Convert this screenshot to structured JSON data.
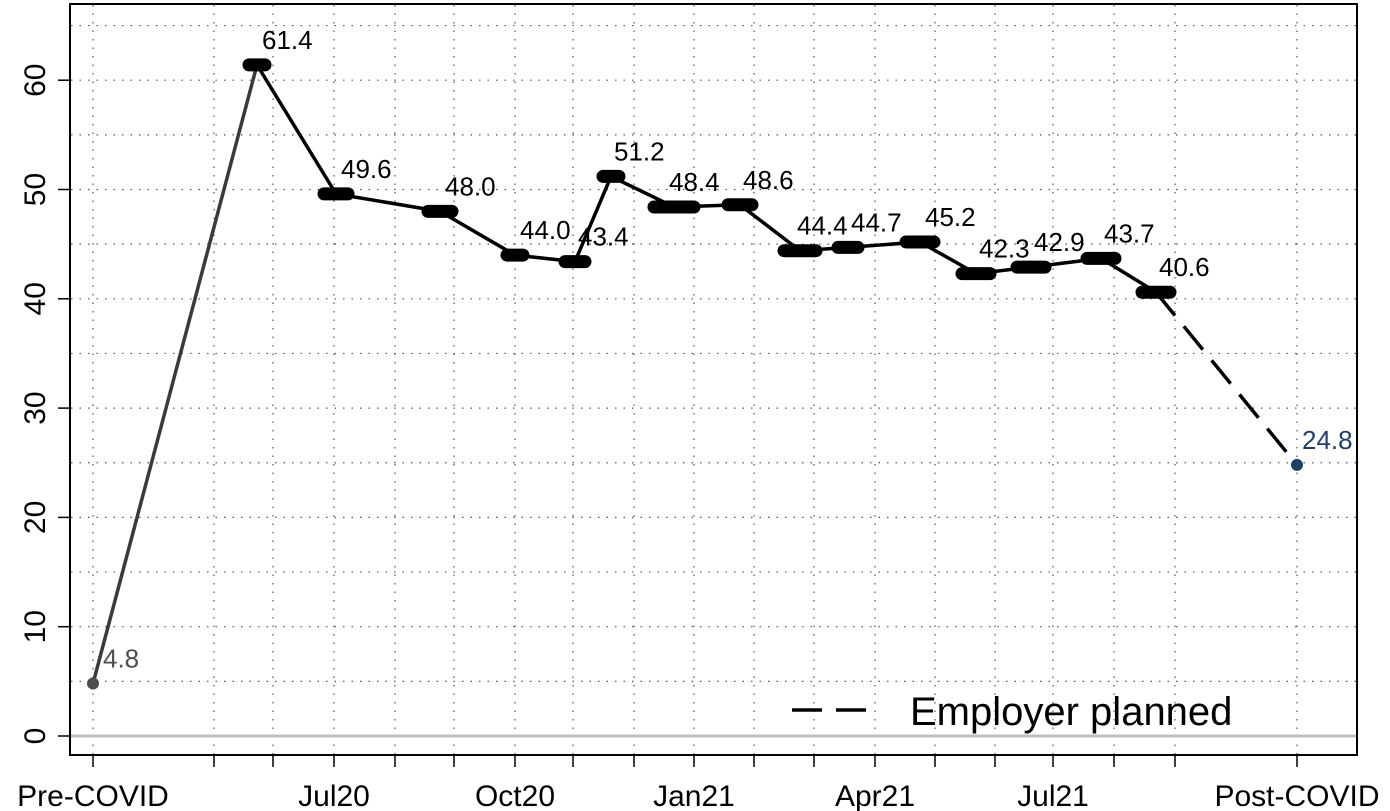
{
  "chart_data": {
    "type": "line",
    "title": "",
    "xlabel": "",
    "ylabel": "",
    "ylim": [
      0,
      65
    ],
    "yticks": [
      0,
      10,
      20,
      30,
      40,
      50,
      60
    ],
    "xticklabels": [
      "Pre-COVID",
      "Jul20",
      "Oct20",
      "Jan21",
      "Apr21",
      "Jul21",
      "Post-COVID"
    ],
    "grid": true,
    "legend": {
      "position": "bottom-right",
      "label": "Employer planned",
      "style": "dashed"
    },
    "series": [
      {
        "values": [
          {
            "x": "Pre-COVID",
            "y": 4.8,
            "label": "4.8"
          },
          {
            "x": "2020-05",
            "y": 61.4,
            "label": "61.4"
          },
          {
            "x": "2020-07",
            "y": 49.6,
            "label": "49.6"
          },
          {
            "x": "2020-09",
            "y": 48.0,
            "label": "48.0"
          },
          {
            "x": "2020-10",
            "y": 44.0,
            "label": "44.0"
          },
          {
            "x": "2020-11",
            "y": 43.4,
            "label": "43.4"
          },
          {
            "x": "2020-12",
            "y": 51.2,
            "label": "51.2"
          },
          {
            "x": "2021-01",
            "y": 48.4,
            "label": "48.4"
          },
          {
            "x": "2021-02",
            "y": 48.6,
            "label": "48.6"
          },
          {
            "x": "2021-03",
            "y": 44.4,
            "label": "44.4"
          },
          {
            "x": "2021-04",
            "y": 44.7,
            "label": "44.7"
          },
          {
            "x": "2021-05",
            "y": 45.2,
            "label": "45.2"
          },
          {
            "x": "2021-06",
            "y": 42.3,
            "label": "42.3"
          },
          {
            "x": "2021-07",
            "y": 42.9,
            "label": "42.9"
          },
          {
            "x": "2021-08",
            "y": 43.7,
            "label": "43.7"
          },
          {
            "x": "2021-09",
            "y": 40.6,
            "label": "40.6"
          },
          {
            "x": "Post-COVID",
            "y": 24.8,
            "label": "24.8"
          }
        ]
      }
    ],
    "colors": {
      "main": "#000000",
      "pre": "#4d4d4d",
      "post": "#1f3f66",
      "grid": "#555555",
      "zero": "#bfbfbf"
    }
  }
}
